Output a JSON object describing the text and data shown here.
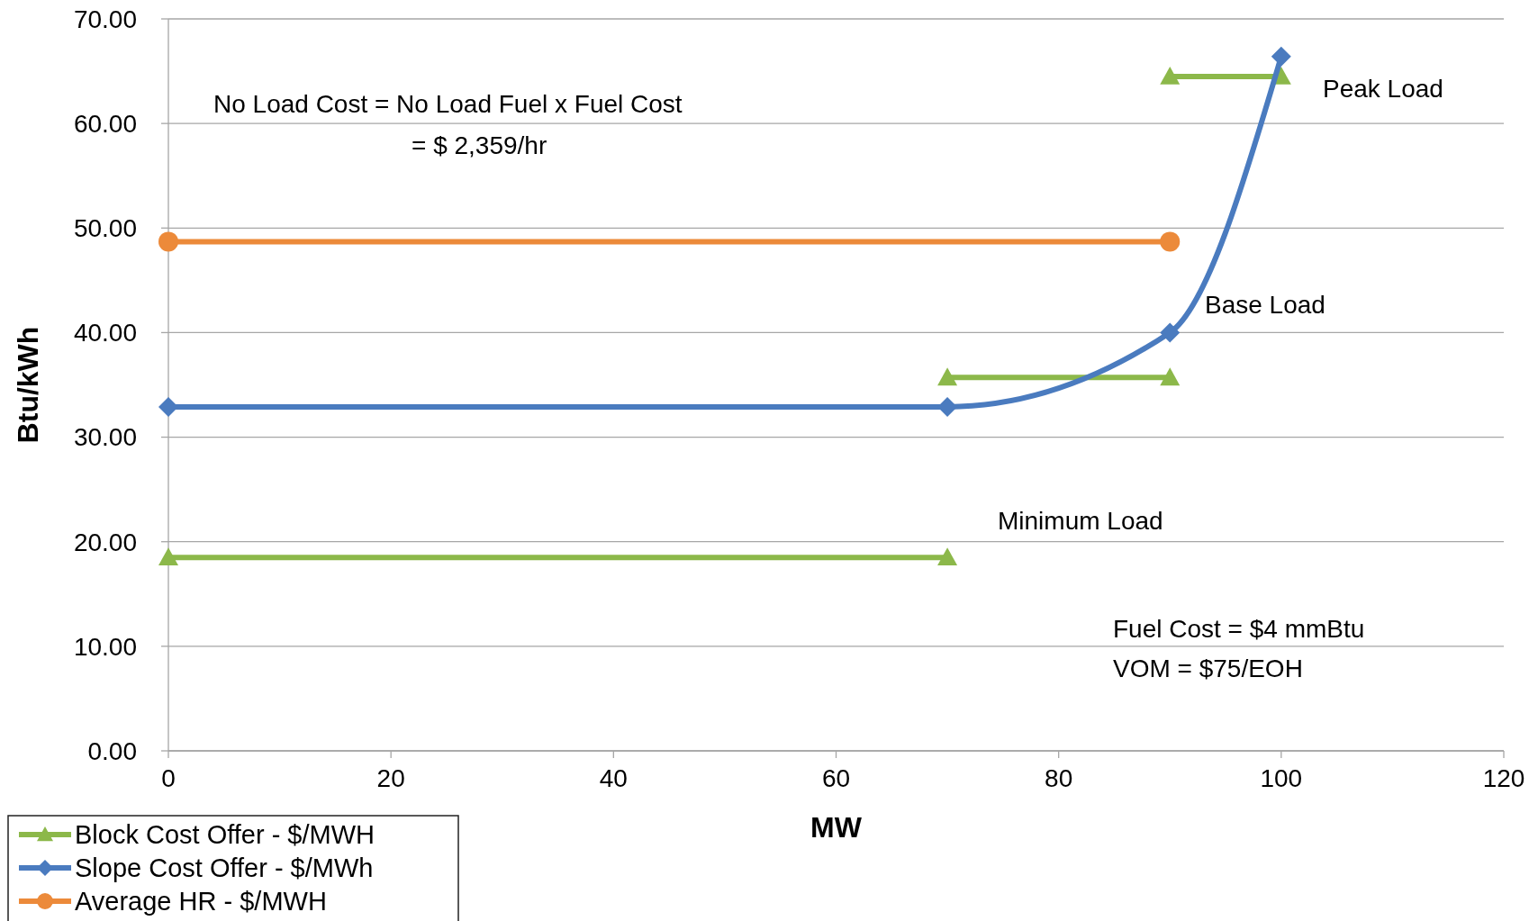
{
  "chart_data": {
    "type": "line",
    "xlabel": "MW",
    "ylabel": "Btu/kWh",
    "xlim": [
      0,
      120
    ],
    "xticks": [
      0,
      20,
      40,
      60,
      80,
      100,
      120
    ],
    "ylim": [
      0,
      70
    ],
    "yticks": [
      {
        "value": 0,
        "label": "0.00"
      },
      {
        "value": 10,
        "label": "10.00"
      },
      {
        "value": 20,
        "label": "20.00"
      },
      {
        "value": 30,
        "label": "30.00"
      },
      {
        "value": 40,
        "label": "40.00"
      },
      {
        "value": 50,
        "label": "50.00"
      },
      {
        "value": 60,
        "label": "60.00"
      },
      {
        "value": 70,
        "label": "70.00"
      }
    ],
    "grid": "y",
    "legend": "bottom left",
    "series": [
      {
        "name": "Block Cost Offer - $/MWH",
        "color": "#8cb84a",
        "marker": "triangle",
        "x": [
          0,
          70,
          null,
          70,
          90,
          null,
          90,
          100
        ],
        "values": [
          18.5,
          18.5,
          null,
          35.7,
          35.7,
          null,
          64.5,
          64.5
        ]
      },
      {
        "name": "Slope Cost Offer - $/MWh",
        "color": "#4a7bbf",
        "marker": "diamond",
        "x": [
          0,
          70,
          90,
          100
        ],
        "values": [
          32.9,
          32.9,
          40,
          66.4
        ]
      },
      {
        "name": "Average HR - $/MWH",
        "color": "#ec8a3a",
        "marker": "circle",
        "x": [
          0,
          90
        ],
        "values": [
          48.7,
          48.7
        ]
      }
    ],
    "annotations": [
      "No Load Cost = No Load Fuel x Fuel Cost",
      "= $ 2,359/hr",
      "Peak Load",
      "Base Load",
      "Minimum Load",
      "Fuel Cost = $4 mmBtu",
      "VOM = $75/EOH"
    ]
  }
}
